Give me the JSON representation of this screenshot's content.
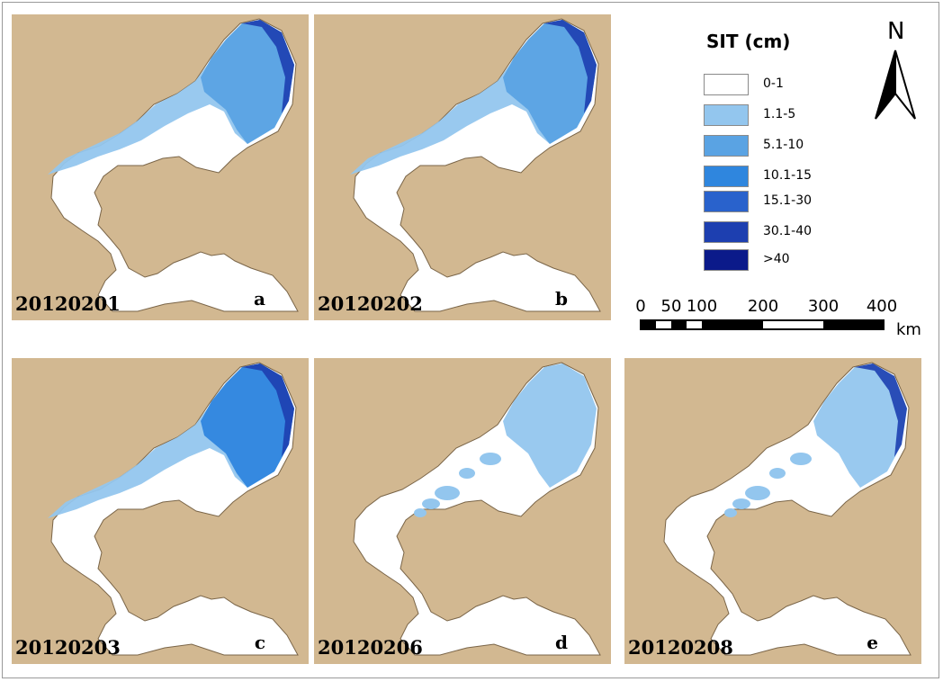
{
  "colors": {
    "land": "#d2b891",
    "water": "#ffffff",
    "coast": "#7a6548"
  },
  "panels": [
    {
      "date": "20120201",
      "letter": "a",
      "ice": [
        {
          "cls": 1,
          "shape": "band"
        },
        {
          "cls": 2,
          "shape": "ne-bay"
        },
        {
          "cls": 5,
          "shape": "ne-edge"
        }
      ]
    },
    {
      "date": "20120202",
      "letter": "b",
      "ice": [
        {
          "cls": 1,
          "shape": "band"
        },
        {
          "cls": 2,
          "shape": "ne-bay"
        },
        {
          "cls": 5,
          "shape": "ne-edge"
        }
      ]
    },
    {
      "date": "20120203",
      "letter": "c",
      "ice": [
        {
          "cls": 1,
          "shape": "band"
        },
        {
          "cls": 3,
          "shape": "ne-bay"
        },
        {
          "cls": 5,
          "shape": "ne-edge"
        }
      ]
    },
    {
      "date": "20120206",
      "letter": "d",
      "ice": [
        {
          "cls": 1,
          "shape": "ne-bay"
        },
        {
          "cls": 1,
          "shape": "patches"
        }
      ]
    },
    {
      "date": "20120208",
      "letter": "e",
      "ice": [
        {
          "cls": 1,
          "shape": "ne-bay"
        },
        {
          "cls": 1,
          "shape": "patches"
        },
        {
          "cls": 5,
          "shape": "ne-edge"
        }
      ]
    }
  ],
  "legend": {
    "title": "SIT (cm)",
    "classes": [
      {
        "label": "0-1",
        "color": "#ffffff"
      },
      {
        "label": "1.1-5",
        "color": "#93c6ee"
      },
      {
        "label": "5.1-10",
        "color": "#5aa3e3"
      },
      {
        "label": "10.1-15",
        "color": "#2f86de"
      },
      {
        "label": "15.1-30",
        "color": "#2962cc"
      },
      {
        "label": "30.1-40",
        "color": "#1d3fb0"
      },
      {
        "label": ">40",
        "color": "#0b1a8a"
      }
    ]
  },
  "north": {
    "label": "N"
  },
  "scale_bar": {
    "ticks": [
      "0",
      "50",
      "100",
      "200",
      "300",
      "400"
    ],
    "unit": "km"
  }
}
